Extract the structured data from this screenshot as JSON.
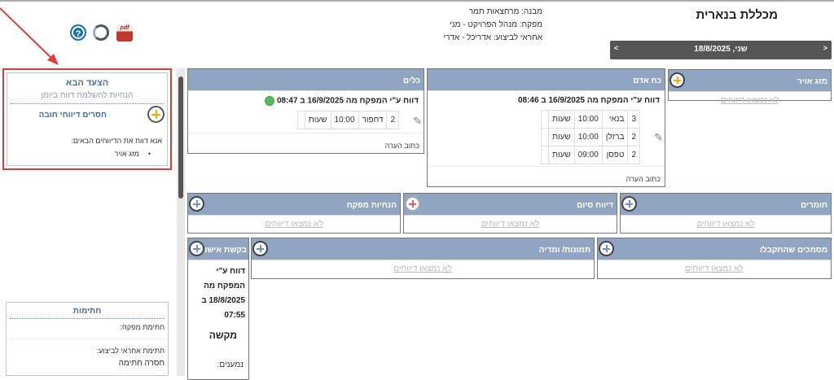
{
  "header": {
    "title": "מכללת בנארית",
    "building": "מבנה: מרחצאות תמר",
    "supplier": "מפקח: מנהל הפרויקט - מני",
    "responsible": "אחראי לביצוע: אדריכל - אדרי",
    "date": "שני, 18/8/2025",
    "prev": "<",
    "next": ">"
  },
  "toolbar": {
    "help": "?",
    "pdf": "pdf"
  },
  "next_step": {
    "title": "הצעד הבא",
    "subtitle": "הנחיות להשלמת דווח ביומן",
    "missing": "חסרים דיווחי חובה",
    "instruction": "אנא דווח את הדיווחים הבאים:",
    "items": [
      "מזג אויר"
    ]
  },
  "signatures": {
    "title": "חתימות",
    "supervisor": "חתימת מפקח:",
    "responsible": "חתימת אחראי לביצוע:",
    "missing": "חסרה חתימה"
  },
  "empty_text": "לא נמצאו דיווחים",
  "note_label": "כתוב הערה",
  "cards": {
    "weather": {
      "title": "מזג אויר"
    },
    "manpower": {
      "title": "כח אדם",
      "report": "דווח ע\"י המפקח מה 16/9/2025 ב 08:46",
      "rows": [
        [
          "3",
          "בנאי",
          "10:00",
          "שעות"
        ],
        [
          "2",
          "ברזלן",
          "10:00",
          "שעות"
        ],
        [
          "2",
          "טפסן",
          "09:00",
          "שעות"
        ]
      ]
    },
    "tools": {
      "title": "כלים",
      "report": "דווח ע\"י המפקח מה 16/9/2025 ב 08:47",
      "rows": [
        [
          "2",
          "דחפור",
          "10:00",
          "שעות"
        ]
      ]
    },
    "materials": {
      "title": "חומרים"
    },
    "end_report": {
      "title": "דיווח סיום"
    },
    "supervisor_notes": {
      "title": "הנחיות מפקח"
    },
    "documents": {
      "title": "מסמכים שהתקבלו"
    },
    "media": {
      "title": "תמונות/ ומדיה"
    },
    "approval": {
      "title": "בקשת אישור",
      "l1": "דווח ע\"י",
      "l2": "המפקח מה",
      "l3": "18/8/2025 ב",
      "l4": "07:55",
      "request": "מקשה",
      "recipients": "נמענים:"
    }
  },
  "colors": {
    "card_header": "#8fa5c2",
    "highlight": "#e03c3c",
    "date_bar": "#555555"
  }
}
